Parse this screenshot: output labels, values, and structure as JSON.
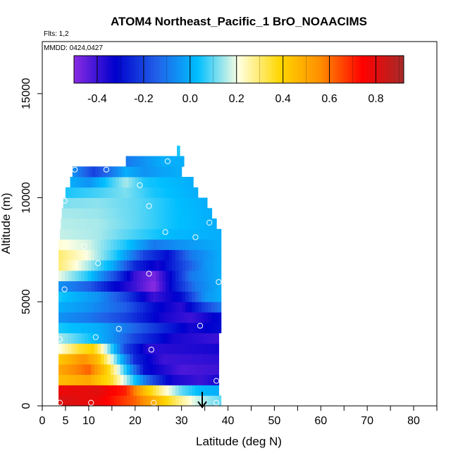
{
  "chart_data": {
    "type": "heatmap",
    "title": "ATOM4 Northeast_Pacific_1 BrO_NOAACIMS",
    "flights_label": "Flts: 1,2",
    "dates_label": "MMDD: 0424,0427",
    "xlabel": "Latitude (deg N)",
    "ylabel": "Altitude (m)",
    "xlim": [
      0,
      85
    ],
    "ylim": [
      0,
      17500
    ],
    "x_ticks": [
      "0",
      "5",
      "10",
      "20",
      "30",
      "40",
      "50",
      "60",
      "70",
      "80"
    ],
    "y_ticks": [
      "0",
      "5000",
      "10000",
      "15000"
    ],
    "colorbar": {
      "range": [
        -0.5,
        0.92
      ],
      "ticks": [
        "-0.4",
        "-0.2",
        "0.0",
        "0.2",
        "0.4",
        "0.6",
        "0.8"
      ],
      "colors": [
        "#8a2be2",
        "#0000cd",
        "#2060e8",
        "#00bfff",
        "#ffffe0",
        "#ffd700",
        "#ff8c00",
        "#ff0000",
        "#a52a2a"
      ]
    },
    "marker_latitude": 35,
    "layers": [
      {
        "alt_bottom": 0,
        "alt_top": 500,
        "lat_start": 3.5,
        "lat_end": 38.5,
        "stops": [
          [
            3.5,
            0.82
          ],
          [
            12,
            0.78
          ],
          [
            20,
            0.62
          ],
          [
            25,
            0.45
          ],
          [
            29,
            0.3
          ],
          [
            33,
            0.18
          ],
          [
            38.5,
            0.1
          ]
        ]
      },
      {
        "alt_bottom": 500,
        "alt_top": 1000,
        "lat_start": 3.5,
        "lat_end": 38,
        "stops": [
          [
            3.5,
            0.78
          ],
          [
            12,
            0.8
          ],
          [
            18,
            0.7
          ],
          [
            22,
            0.45
          ],
          [
            26,
            0.25
          ],
          [
            30,
            0.1
          ],
          [
            34,
            0.02
          ],
          [
            38,
            0.0
          ]
        ]
      },
      {
        "alt_bottom": 1000,
        "alt_top": 1500,
        "lat_start": 3.5,
        "lat_end": 38,
        "stops": [
          [
            3.5,
            0.45
          ],
          [
            10,
            0.5
          ],
          [
            15,
            0.35
          ],
          [
            19,
            0.1
          ],
          [
            23,
            -0.15
          ],
          [
            28,
            -0.35
          ],
          [
            34,
            -0.4
          ],
          [
            38,
            -0.35
          ]
        ]
      },
      {
        "alt_bottom": 1500,
        "alt_top": 2000,
        "lat_start": 3.5,
        "lat_end": 38,
        "stops": [
          [
            3.5,
            0.5
          ],
          [
            10,
            0.62
          ],
          [
            14,
            0.4
          ],
          [
            18,
            0.05
          ],
          [
            22,
            -0.3
          ],
          [
            30,
            -0.42
          ],
          [
            38,
            -0.4
          ]
        ]
      },
      {
        "alt_bottom": 2000,
        "alt_top": 2500,
        "lat_start": 3.5,
        "lat_end": 38,
        "stops": [
          [
            3.5,
            0.42
          ],
          [
            9,
            0.55
          ],
          [
            12,
            0.45
          ],
          [
            16,
            0.1
          ],
          [
            20,
            -0.25
          ],
          [
            26,
            -0.4
          ],
          [
            38,
            -0.38
          ]
        ]
      },
      {
        "alt_bottom": 2500,
        "alt_top": 3000,
        "lat_start": 3.5,
        "lat_end": 38,
        "stops": [
          [
            3.5,
            0.2
          ],
          [
            8,
            0.35
          ],
          [
            11,
            0.4
          ],
          [
            14,
            0.15
          ],
          [
            18,
            -0.2
          ],
          [
            23,
            -0.38
          ],
          [
            38,
            -0.35
          ]
        ]
      },
      {
        "alt_bottom": 3000,
        "alt_top": 3500,
        "lat_start": 3.5,
        "lat_end": 38,
        "stops": [
          [
            3.5,
            0.15
          ],
          [
            10,
            0.05
          ],
          [
            15,
            -0.05
          ],
          [
            20,
            -0.2
          ],
          [
            28,
            -0.35
          ],
          [
            38,
            -0.4
          ]
        ]
      },
      {
        "alt_bottom": 3500,
        "alt_top": 4000,
        "lat_start": 3.5,
        "lat_end": 38.5,
        "stops": [
          [
            3.5,
            0.05
          ],
          [
            12,
            0.0
          ],
          [
            18,
            -0.1
          ],
          [
            26,
            -0.25
          ],
          [
            32,
            -0.35
          ],
          [
            38.5,
            -0.3
          ]
        ]
      },
      {
        "alt_bottom": 4000,
        "alt_top": 4500,
        "lat_start": 3.5,
        "lat_end": 38.5,
        "stops": [
          [
            3.5,
            -0.05
          ],
          [
            10,
            -0.1
          ],
          [
            18,
            -0.2
          ],
          [
            26,
            -0.35
          ],
          [
            32,
            -0.4
          ],
          [
            38.5,
            -0.3
          ]
        ]
      },
      {
        "alt_bottom": 4500,
        "alt_top": 5000,
        "lat_start": 3.5,
        "lat_end": 38.5,
        "stops": [
          [
            3.5,
            0.0
          ],
          [
            10,
            -0.05
          ],
          [
            18,
            -0.15
          ],
          [
            24,
            -0.3
          ],
          [
            30,
            -0.38
          ],
          [
            35,
            -0.2
          ],
          [
            38.5,
            -0.1
          ]
        ]
      },
      {
        "alt_bottom": 5000,
        "alt_top": 5500,
        "lat_start": 3.5,
        "lat_end": 38.5,
        "stops": [
          [
            3.5,
            0.05
          ],
          [
            12,
            -0.05
          ],
          [
            18,
            -0.2
          ],
          [
            24,
            -0.4
          ],
          [
            30,
            -0.3
          ],
          [
            35,
            -0.05
          ],
          [
            38.5,
            0.0
          ]
        ]
      },
      {
        "alt_bottom": 5500,
        "alt_top": 6000,
        "lat_start": 3.5,
        "lat_end": 38.5,
        "stops": [
          [
            3.5,
            -0.05
          ],
          [
            10,
            -0.15
          ],
          [
            15,
            -0.3
          ],
          [
            20,
            -0.4
          ],
          [
            24,
            -0.5
          ],
          [
            28,
            -0.3
          ],
          [
            33,
            -0.1
          ],
          [
            38.5,
            0.0
          ]
        ]
      },
      {
        "alt_bottom": 6000,
        "alt_top": 6500,
        "lat_start": 3.5,
        "lat_end": 38.5,
        "stops": [
          [
            3.5,
            0.2
          ],
          [
            10,
            0.05
          ],
          [
            16,
            -0.2
          ],
          [
            20,
            -0.4
          ],
          [
            24,
            -0.48
          ],
          [
            28,
            -0.3
          ],
          [
            32,
            -0.1
          ],
          [
            38.5,
            0.0
          ]
        ]
      },
      {
        "alt_bottom": 6500,
        "alt_top": 7000,
        "lat_start": 3.5,
        "lat_end": 38.5,
        "stops": [
          [
            3.5,
            0.3
          ],
          [
            10,
            0.15
          ],
          [
            15,
            0.0
          ],
          [
            20,
            -0.25
          ],
          [
            25,
            -0.35
          ],
          [
            30,
            -0.2
          ],
          [
            35,
            -0.05
          ],
          [
            38.5,
            0.0
          ]
        ]
      },
      {
        "alt_bottom": 7000,
        "alt_top": 7500,
        "lat_start": 3.5,
        "lat_end": 38.5,
        "stops": [
          [
            3.5,
            0.3
          ],
          [
            10,
            0.2
          ],
          [
            16,
            0.05
          ],
          [
            22,
            -0.2
          ],
          [
            27,
            -0.3
          ],
          [
            32,
            -0.1
          ],
          [
            38.5,
            0.0
          ]
        ]
      },
      {
        "alt_bottom": 7500,
        "alt_top": 8000,
        "lat_start": 3.5,
        "lat_end": 38.5,
        "stops": [
          [
            3.5,
            0.22
          ],
          [
            10,
            0.18
          ],
          [
            18,
            0.05
          ],
          [
            24,
            -0.1
          ],
          [
            30,
            -0.05
          ],
          [
            38.5,
            0.0
          ]
        ]
      },
      {
        "alt_bottom": 8000,
        "alt_top": 8500,
        "lat_start": 3.8,
        "lat_end": 38.5,
        "stops": [
          [
            3.8,
            0.17
          ],
          [
            12,
            0.15
          ],
          [
            20,
            0.08
          ],
          [
            28,
            0.02
          ],
          [
            38.5,
            0.0
          ]
        ]
      },
      {
        "alt_bottom": 8500,
        "alt_top": 9000,
        "lat_start": 4.0,
        "lat_end": 37.5,
        "stops": [
          [
            4,
            0.16
          ],
          [
            12,
            0.15
          ],
          [
            20,
            0.1
          ],
          [
            28,
            0.04
          ],
          [
            37.5,
            0.0
          ]
        ]
      },
      {
        "alt_bottom": 9000,
        "alt_top": 9500,
        "lat_start": 4.2,
        "lat_end": 36.5,
        "stops": [
          [
            4.2,
            0.15
          ],
          [
            12,
            0.14
          ],
          [
            20,
            0.1
          ],
          [
            28,
            0.04
          ],
          [
            36.5,
            0.0
          ]
        ]
      },
      {
        "alt_bottom": 9500,
        "alt_top": 10000,
        "lat_start": 4.5,
        "lat_end": 35.5,
        "stops": [
          [
            4.5,
            0.12
          ],
          [
            12,
            0.13
          ],
          [
            20,
            0.1
          ],
          [
            28,
            0.04
          ],
          [
            35.5,
            0.0
          ]
        ]
      },
      {
        "alt_bottom": 10000,
        "alt_top": 10500,
        "lat_start": 5.0,
        "lat_end": 33.5,
        "stops": [
          [
            5,
            0.05
          ],
          [
            12,
            0.08
          ],
          [
            18,
            0.12
          ],
          [
            24,
            0.05
          ],
          [
            33.5,
            0.0
          ]
        ]
      },
      {
        "alt_bottom": 10500,
        "alt_top": 11000,
        "lat_start": 6.0,
        "lat_end": 32.5,
        "stops": [
          [
            6,
            0.0
          ],
          [
            10,
            -0.05
          ],
          [
            14,
            0.05
          ],
          [
            18,
            0.15
          ],
          [
            22,
            0.05
          ],
          [
            32.5,
            0.0
          ]
        ]
      },
      {
        "alt_bottom": 11000,
        "alt_top": 11500,
        "lat_start": 6.5,
        "lat_end": 30.0,
        "stops": [
          [
            6.5,
            -0.05
          ],
          [
            11,
            -0.2
          ],
          [
            15,
            -0.1
          ],
          [
            18,
            0.0
          ],
          [
            22,
            -0.05
          ],
          [
            26,
            -0.02
          ],
          [
            30,
            0.0
          ]
        ]
      },
      {
        "alt_bottom": 11500,
        "alt_top": 12000,
        "lat_start": 18.0,
        "lat_end": 30.5,
        "stops": [
          [
            18,
            -0.1
          ],
          [
            22,
            -0.05
          ],
          [
            26,
            0.0
          ],
          [
            30.5,
            0.0
          ]
        ]
      },
      {
        "alt_bottom": 12000,
        "alt_top": 12500,
        "lat_start": 29.0,
        "lat_end": 29.6,
        "stops": [
          [
            29,
            0.05
          ],
          [
            29.6,
            0.05
          ]
        ]
      }
    ],
    "observation_points": [
      {
        "lat": 3.8,
        "alt": 150
      },
      {
        "lat": 10.5,
        "alt": 150
      },
      {
        "lat": 24.0,
        "alt": 150
      },
      {
        "lat": 37.5,
        "alt": 150
      },
      {
        "lat": 37.5,
        "alt": 1200
      },
      {
        "lat": 11.5,
        "alt": 3300
      },
      {
        "lat": 23.5,
        "alt": 2700
      },
      {
        "lat": 3.8,
        "alt": 3200
      },
      {
        "lat": 16.5,
        "alt": 3700
      },
      {
        "lat": 34.0,
        "alt": 3850
      },
      {
        "lat": 4.8,
        "alt": 5600
      },
      {
        "lat": 38.0,
        "alt": 5950
      },
      {
        "lat": 23.0,
        "alt": 6350
      },
      {
        "lat": 12.0,
        "alt": 6850
      },
      {
        "lat": 9.0,
        "alt": 7650
      },
      {
        "lat": 33.0,
        "alt": 8100
      },
      {
        "lat": 26.5,
        "alt": 8350
      },
      {
        "lat": 36.0,
        "alt": 8800
      },
      {
        "lat": 23.0,
        "alt": 9600
      },
      {
        "lat": 4.8,
        "alt": 9850
      },
      {
        "lat": 21.0,
        "alt": 10600
      },
      {
        "lat": 7.0,
        "alt": 11350
      },
      {
        "lat": 13.8,
        "alt": 11350
      },
      {
        "lat": 27.0,
        "alt": 11750
      }
    ]
  }
}
